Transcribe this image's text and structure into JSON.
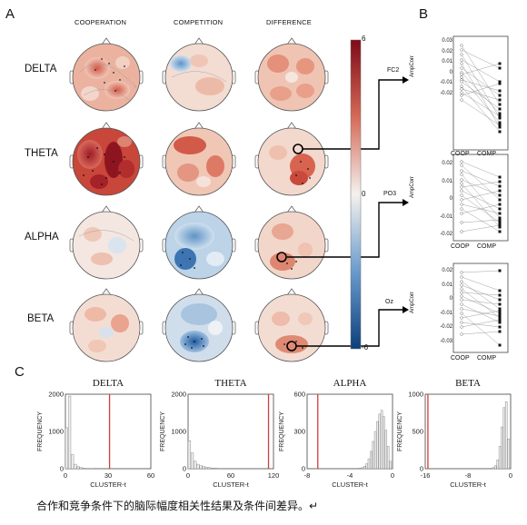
{
  "panels": {
    "A": "A",
    "B": "B",
    "C": "C"
  },
  "columns": [
    "COOPERATION",
    "COMPETITION",
    "DIFFERENCE"
  ],
  "rows": [
    "DELTA",
    "THETA",
    "ALPHA",
    "BETA"
  ],
  "colorbar": {
    "ticks": [
      "6",
      "0",
      "-6"
    ],
    "colors": {
      "max": "#7e0b17",
      "mid": "#f4f1ee",
      "min": "#0d3f7c"
    }
  },
  "channels": [
    "FC2",
    "PO3",
    "Oz"
  ],
  "panel_b": {
    "ylabel": "AmpCorr",
    "xticks": [
      "COOP",
      "COMP"
    ],
    "yticks": [
      [
        "0.03",
        "0.02",
        "0.01",
        "0",
        "-0.01",
        "-0.02"
      ],
      [
        "0.02",
        "0.01",
        "0",
        "-0.01",
        "-0.02"
      ],
      [
        "0.02",
        "0.01",
        "0",
        "-0.01",
        "-0.02",
        "-0.03"
      ]
    ]
  },
  "caption": "合作和竞争条件下的脑际幅度相关性结果及条件间差异。↵",
  "chart_data": [
    {
      "type": "bar",
      "title": "DELTA",
      "xlabel": "CLUSTER-t",
      "ylabel": "FREQUENCY",
      "xlim": [
        0,
        60
      ],
      "ylim": [
        0,
        2000
      ],
      "xticks": [
        "0",
        "30",
        "60"
      ],
      "yticks": [
        "0",
        "1000",
        "2000"
      ],
      "observed": 31,
      "bins": [
        1,
        3,
        5,
        7,
        9,
        11,
        13,
        15,
        17,
        19
      ],
      "values": [
        1100,
        1950,
        380,
        120,
        60,
        30,
        15,
        8,
        5,
        3
      ]
    },
    {
      "type": "bar",
      "title": "THETA",
      "xlabel": "CLUSTER-t",
      "ylabel": "FREQUENCY",
      "xlim": [
        0,
        120
      ],
      "ylim": [
        0,
        2000
      ],
      "xticks": [
        "0",
        "60",
        "120"
      ],
      "yticks": [
        "0",
        "1000",
        "2000"
      ],
      "observed": 113,
      "bins": [
        2,
        6,
        10,
        14,
        18,
        22,
        26,
        30,
        34,
        38,
        42,
        46
      ],
      "values": [
        750,
        420,
        200,
        120,
        80,
        60,
        40,
        30,
        20,
        15,
        10,
        6
      ]
    },
    {
      "type": "bar",
      "title": "ALPHA",
      "xlabel": "CLUSTER-t",
      "ylabel": "FREQUENCY",
      "xlim": [
        -8,
        0
      ],
      "ylim": [
        0,
        600
      ],
      "xticks": [
        "-8",
        "-4",
        "0"
      ],
      "yticks": [
        "0",
        "300",
        "600"
      ],
      "observed": -7,
      "bins": [
        -3.0,
        -2.8,
        -2.6,
        -2.4,
        -2.2,
        -2.0,
        -1.8,
        -1.6,
        -1.4,
        -1.2,
        -1.0,
        -0.8,
        -0.6,
        -0.4,
        -0.2
      ],
      "values": [
        5,
        10,
        20,
        40,
        80,
        140,
        220,
        300,
        380,
        440,
        470,
        420,
        310,
        180,
        60
      ]
    },
    {
      "type": "bar",
      "title": "BETA",
      "xlabel": "CLUSTER-t",
      "ylabel": "FREQUENCY",
      "xlim": [
        -16,
        0
      ],
      "ylim": [
        0,
        1000
      ],
      "xticks": [
        "-16",
        "-8",
        "0"
      ],
      "yticks": [
        "0",
        "500",
        "1000"
      ],
      "observed": -15.5,
      "bins": [
        -3.6,
        -3.2,
        -2.8,
        -2.4,
        -2.0,
        -1.6,
        -1.2,
        -0.8,
        -0.4
      ],
      "values": [
        5,
        15,
        40,
        120,
        300,
        560,
        820,
        900,
        400
      ]
    }
  ]
}
